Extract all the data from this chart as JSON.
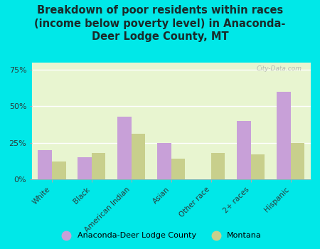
{
  "title": "Breakdown of poor residents within races\n(income below poverty level) in Anaconda-\nDeer Lodge County, MT",
  "categories": [
    "White",
    "Black",
    "American Indian",
    "Asian",
    "Other race",
    "2+ races",
    "Hispanic"
  ],
  "county_values": [
    20,
    15,
    43,
    25,
    0,
    40,
    60
  ],
  "state_values": [
    12,
    18,
    31,
    14,
    18,
    17,
    25
  ],
  "county_color": "#c8a0d8",
  "state_color": "#c8cf8c",
  "bg_color": "#e8f5d0",
  "outer_bg": "#00e8e8",
  "yticks": [
    0,
    25,
    50,
    75
  ],
  "ylim": [
    0,
    80
  ],
  "bar_width": 0.35,
  "title_fontsize": 10.5,
  "title_color": "#1a2a2a",
  "legend_label_county": "Anaconda-Deer Lodge County",
  "legend_label_state": "Montana",
  "watermark": "City-Data.com"
}
